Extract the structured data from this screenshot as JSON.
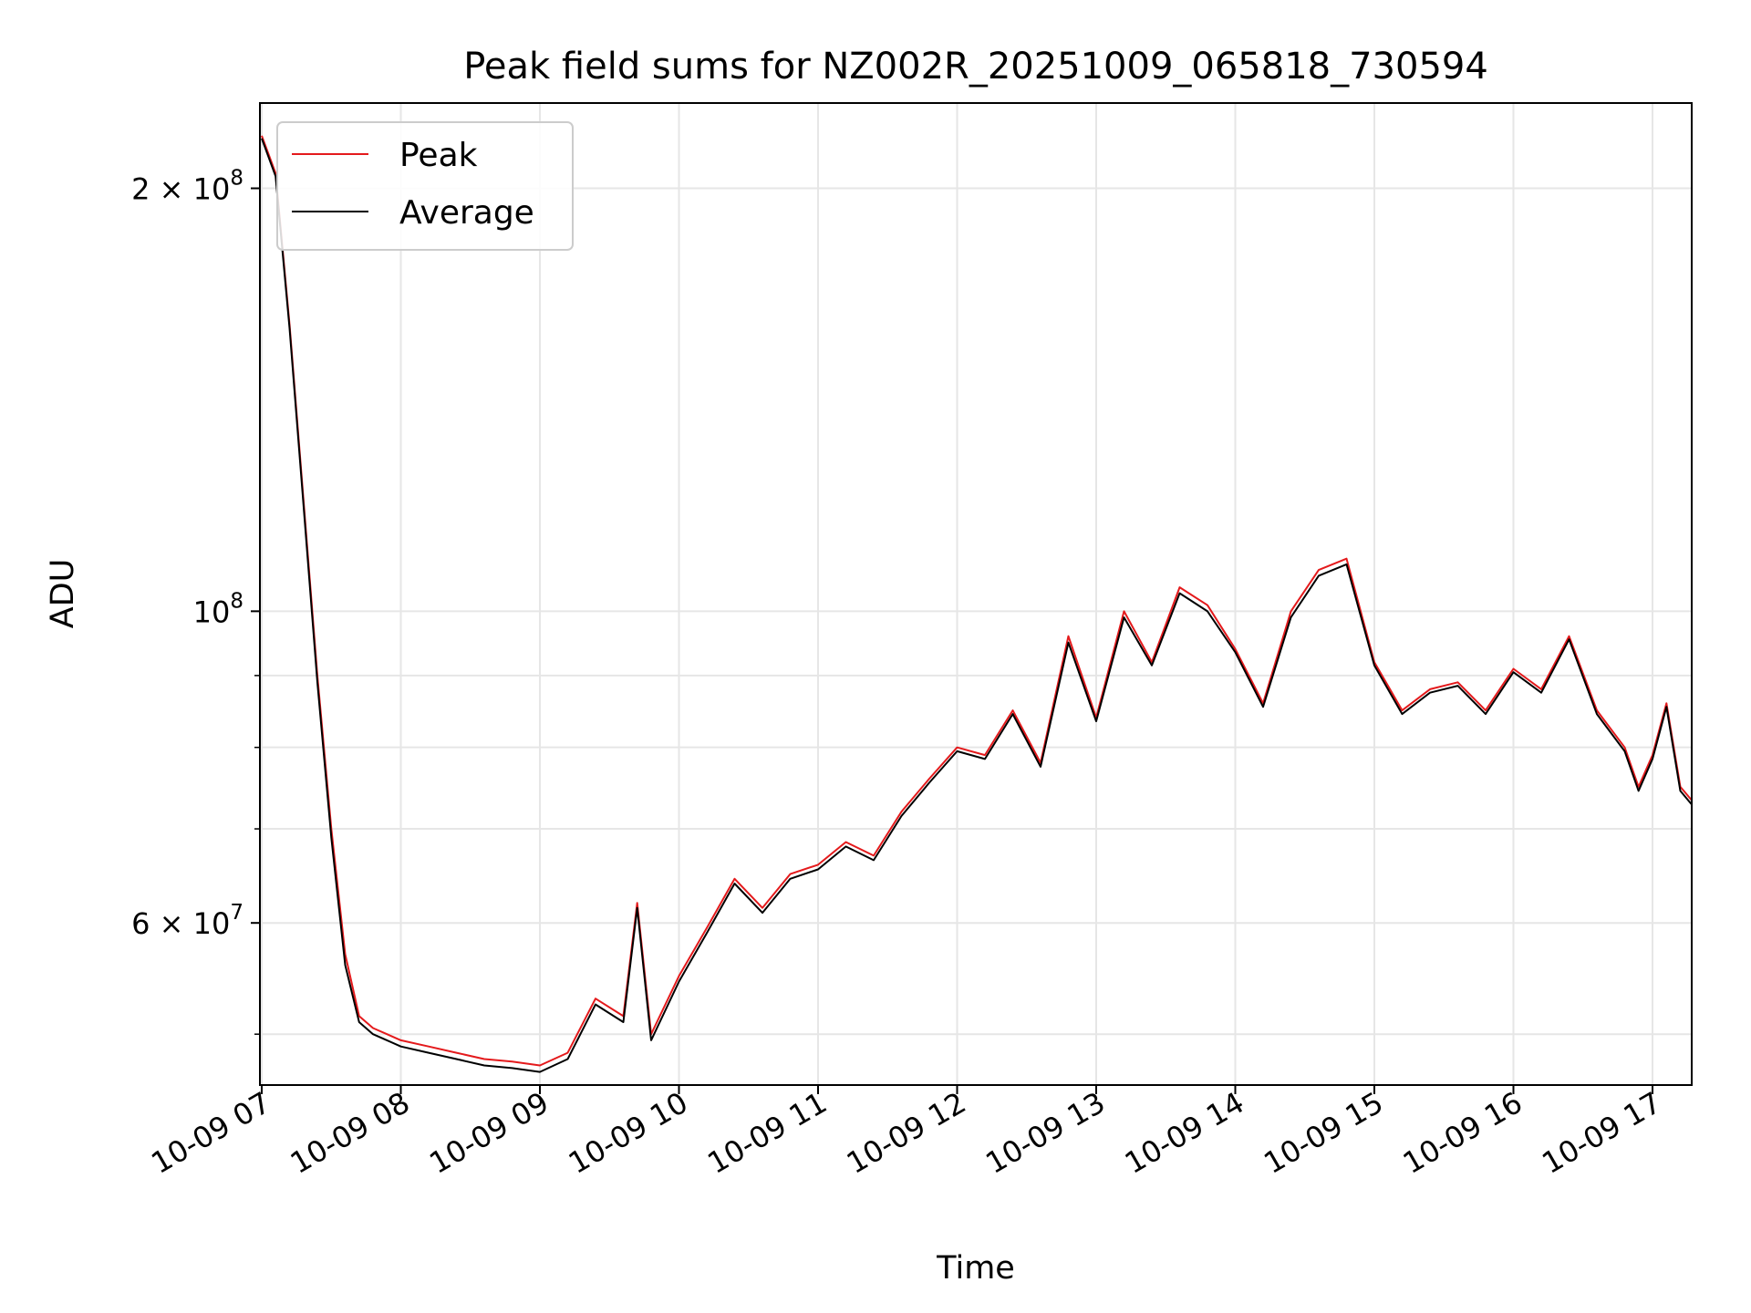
{
  "chart_data": {
    "type": "line",
    "title": "Peak field sums for NZ002R_20251009_065818_730594",
    "xlabel": "Time",
    "ylabel": "ADU",
    "y_scale": "log",
    "xlim": [
      "10-09 07",
      "10-09 17"
    ],
    "x_ticks": [
      "10-09 07",
      "10-09 08",
      "10-09 09",
      "10-09 10",
      "10-09 11",
      "10-09 12",
      "10-09 13",
      "10-09 14",
      "10-09 15",
      "10-09 16",
      "10-09 17"
    ],
    "ylim": [
      46000000,
      230000000
    ],
    "y_major_ticks": [
      {
        "value": 60000000,
        "mantissa": "6",
        "exponent": "7"
      },
      {
        "value": 100000000,
        "mantissa": "",
        "exponent": "8"
      },
      {
        "value": 200000000,
        "mantissa": "2",
        "exponent": "8"
      }
    ],
    "y_minor_ticks": [
      50000000,
      70000000,
      80000000,
      90000000
    ],
    "grid": true,
    "legend_position": "top-left",
    "colors": {
      "Peak": "#e41a1c",
      "Average": "#000000"
    },
    "x": [
      "10-09 07:00",
      "10-09 07:06",
      "10-09 07:12",
      "10-09 07:18",
      "10-09 07:24",
      "10-09 07:30",
      "10-09 07:36",
      "10-09 07:42",
      "10-09 07:48",
      "10-09 07:54",
      "10-09 08:00",
      "10-09 08:12",
      "10-09 08:24",
      "10-09 08:36",
      "10-09 08:48",
      "10-09 09:00",
      "10-09 09:12",
      "10-09 09:24",
      "10-09 09:36",
      "10-09 09:42",
      "10-09 09:48",
      "10-09 10:00",
      "10-09 10:12",
      "10-09 10:24",
      "10-09 10:36",
      "10-09 10:48",
      "10-09 11:00",
      "10-09 11:12",
      "10-09 11:24",
      "10-09 11:36",
      "10-09 11:48",
      "10-09 12:00",
      "10-09 12:12",
      "10-09 12:24",
      "10-09 12:36",
      "10-09 12:48",
      "10-09 13:00",
      "10-09 13:12",
      "10-09 13:24",
      "10-09 13:36",
      "10-09 13:48",
      "10-09 14:00",
      "10-09 14:12",
      "10-09 14:24",
      "10-09 14:36",
      "10-09 14:48",
      "10-09 15:00",
      "10-09 15:12",
      "10-09 15:24",
      "10-09 15:36",
      "10-09 15:48",
      "10-09 16:00",
      "10-09 16:12",
      "10-09 16:24",
      "10-09 16:36",
      "10-09 16:48",
      "10-09 16:54",
      "10-09 17:00",
      "10-09 17:06",
      "10-09 17:12",
      "10-09 17:18"
    ],
    "series": [
      {
        "name": "Peak",
        "values": [
          218000000,
          205000000,
          160000000,
          120000000,
          90000000,
          70000000,
          57000000,
          51500000,
          50500000,
          50000000,
          49500000,
          49000000,
          48500000,
          48000000,
          47800000,
          47500000,
          48500000,
          53000000,
          51500000,
          62000000,
          50000000,
          55000000,
          59500000,
          64500000,
          61500000,
          65000000,
          66000000,
          68500000,
          67000000,
          72000000,
          76000000,
          80000000,
          79000000,
          85000000,
          78000000,
          96000000,
          84000000,
          100000000,
          92000000,
          104000000,
          101000000,
          94000000,
          86000000,
          100000000,
          107000000,
          109000000,
          92000000,
          85000000,
          88000000,
          89000000,
          85000000,
          91000000,
          88000000,
          96000000,
          85000000,
          80000000,
          75000000,
          79000000,
          86000000,
          75000000,
          73000000
        ]
      },
      {
        "name": "Average",
        "values": [
          217000000,
          204000000,
          159000000,
          119000000,
          89000000,
          69000000,
          56000000,
          51000000,
          50000000,
          49500000,
          49000000,
          48500000,
          48000000,
          47500000,
          47300000,
          47000000,
          48000000,
          52500000,
          51000000,
          61500000,
          49500000,
          54500000,
          59000000,
          64000000,
          61000000,
          64500000,
          65500000,
          68000000,
          66500000,
          71500000,
          75500000,
          79500000,
          78500000,
          84500000,
          77500000,
          95000000,
          83500000,
          99000000,
          91500000,
          103000000,
          100000000,
          93500000,
          85500000,
          99000000,
          106000000,
          108000000,
          91500000,
          84500000,
          87500000,
          88500000,
          84500000,
          90500000,
          87500000,
          95500000,
          84500000,
          79500000,
          74500000,
          78500000,
          85500000,
          74500000,
          72500000
        ]
      }
    ]
  }
}
